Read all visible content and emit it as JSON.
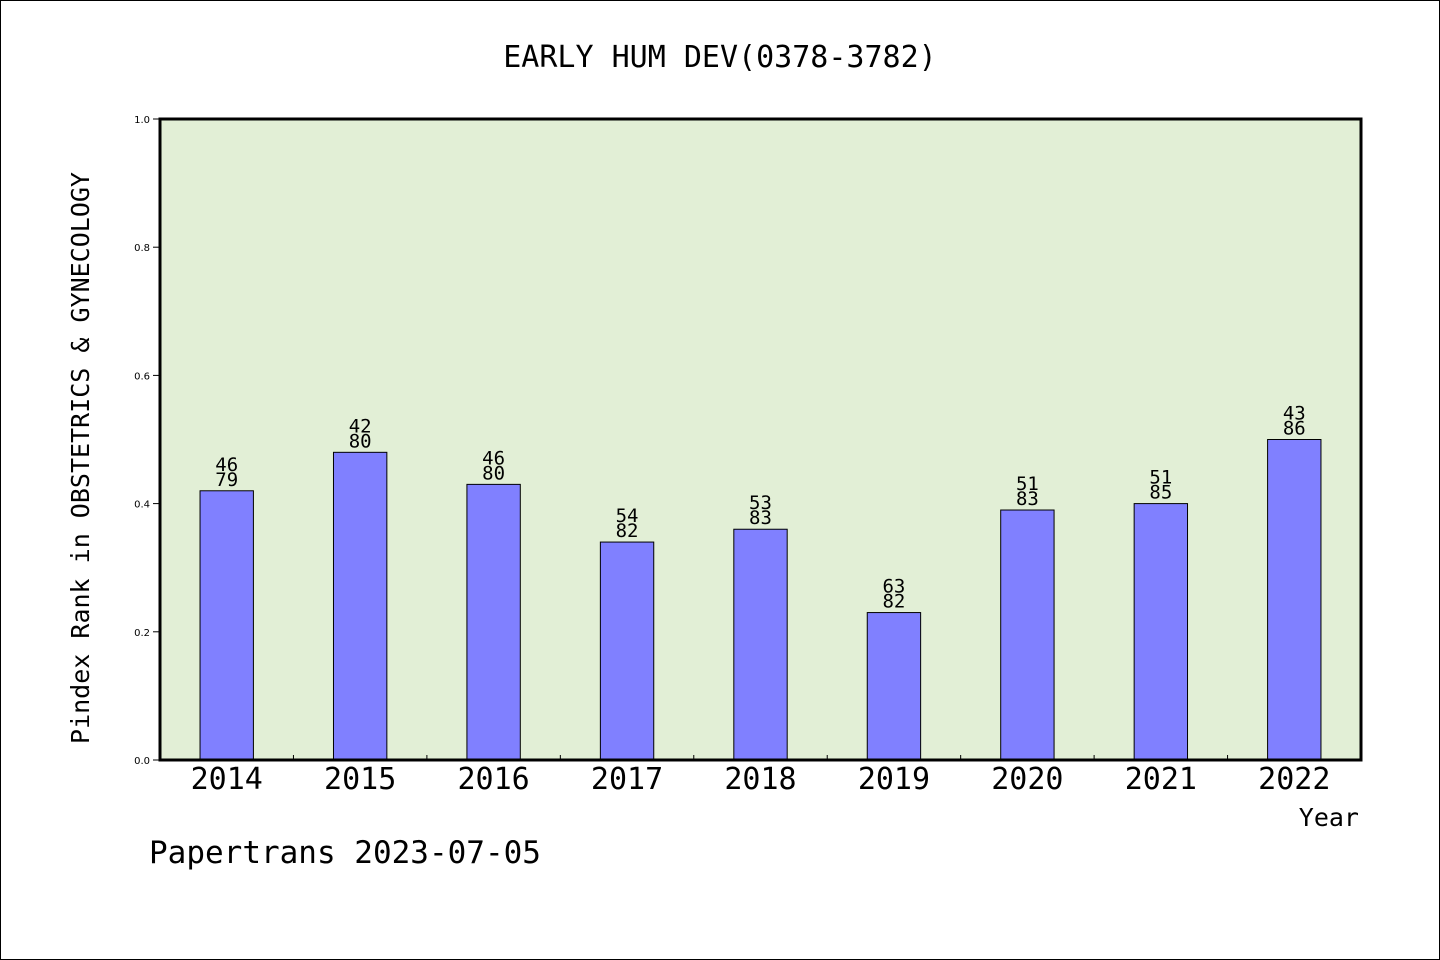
{
  "chart_data": {
    "type": "bar",
    "title": "EARLY HUM DEV(0378-3782)",
    "xlabel": "Year",
    "ylabel": "Pindex Rank in OBSTETRICS & GYNECOLOGY",
    "categories": [
      "2014",
      "2015",
      "2016",
      "2017",
      "2018",
      "2019",
      "2020",
      "2021",
      "2022"
    ],
    "values": [
      0.42,
      0.48,
      0.43,
      0.34,
      0.36,
      0.23,
      0.39,
      0.4,
      0.5
    ],
    "rank": [
      "46",
      "42",
      "46",
      "54",
      "53",
      "63",
      "51",
      "51",
      "43"
    ],
    "total": [
      "79",
      "80",
      "80",
      "82",
      "83",
      "82",
      "83",
      "85",
      "86"
    ],
    "ylim": [
      0,
      1.0
    ],
    "yticks": [
      0.0,
      0.2,
      0.4,
      0.6,
      0.8,
      1.0
    ],
    "ytick_labels": [
      "0.0",
      "0.2",
      "0.4",
      "0.6",
      "0.8",
      "1.0"
    ],
    "grid": false,
    "footer": "Papertrans 2023-07-05",
    "colors": {
      "bar_fill": "#8080ff",
      "plot_background": "#e2efd6",
      "axis": "#000000"
    }
  }
}
